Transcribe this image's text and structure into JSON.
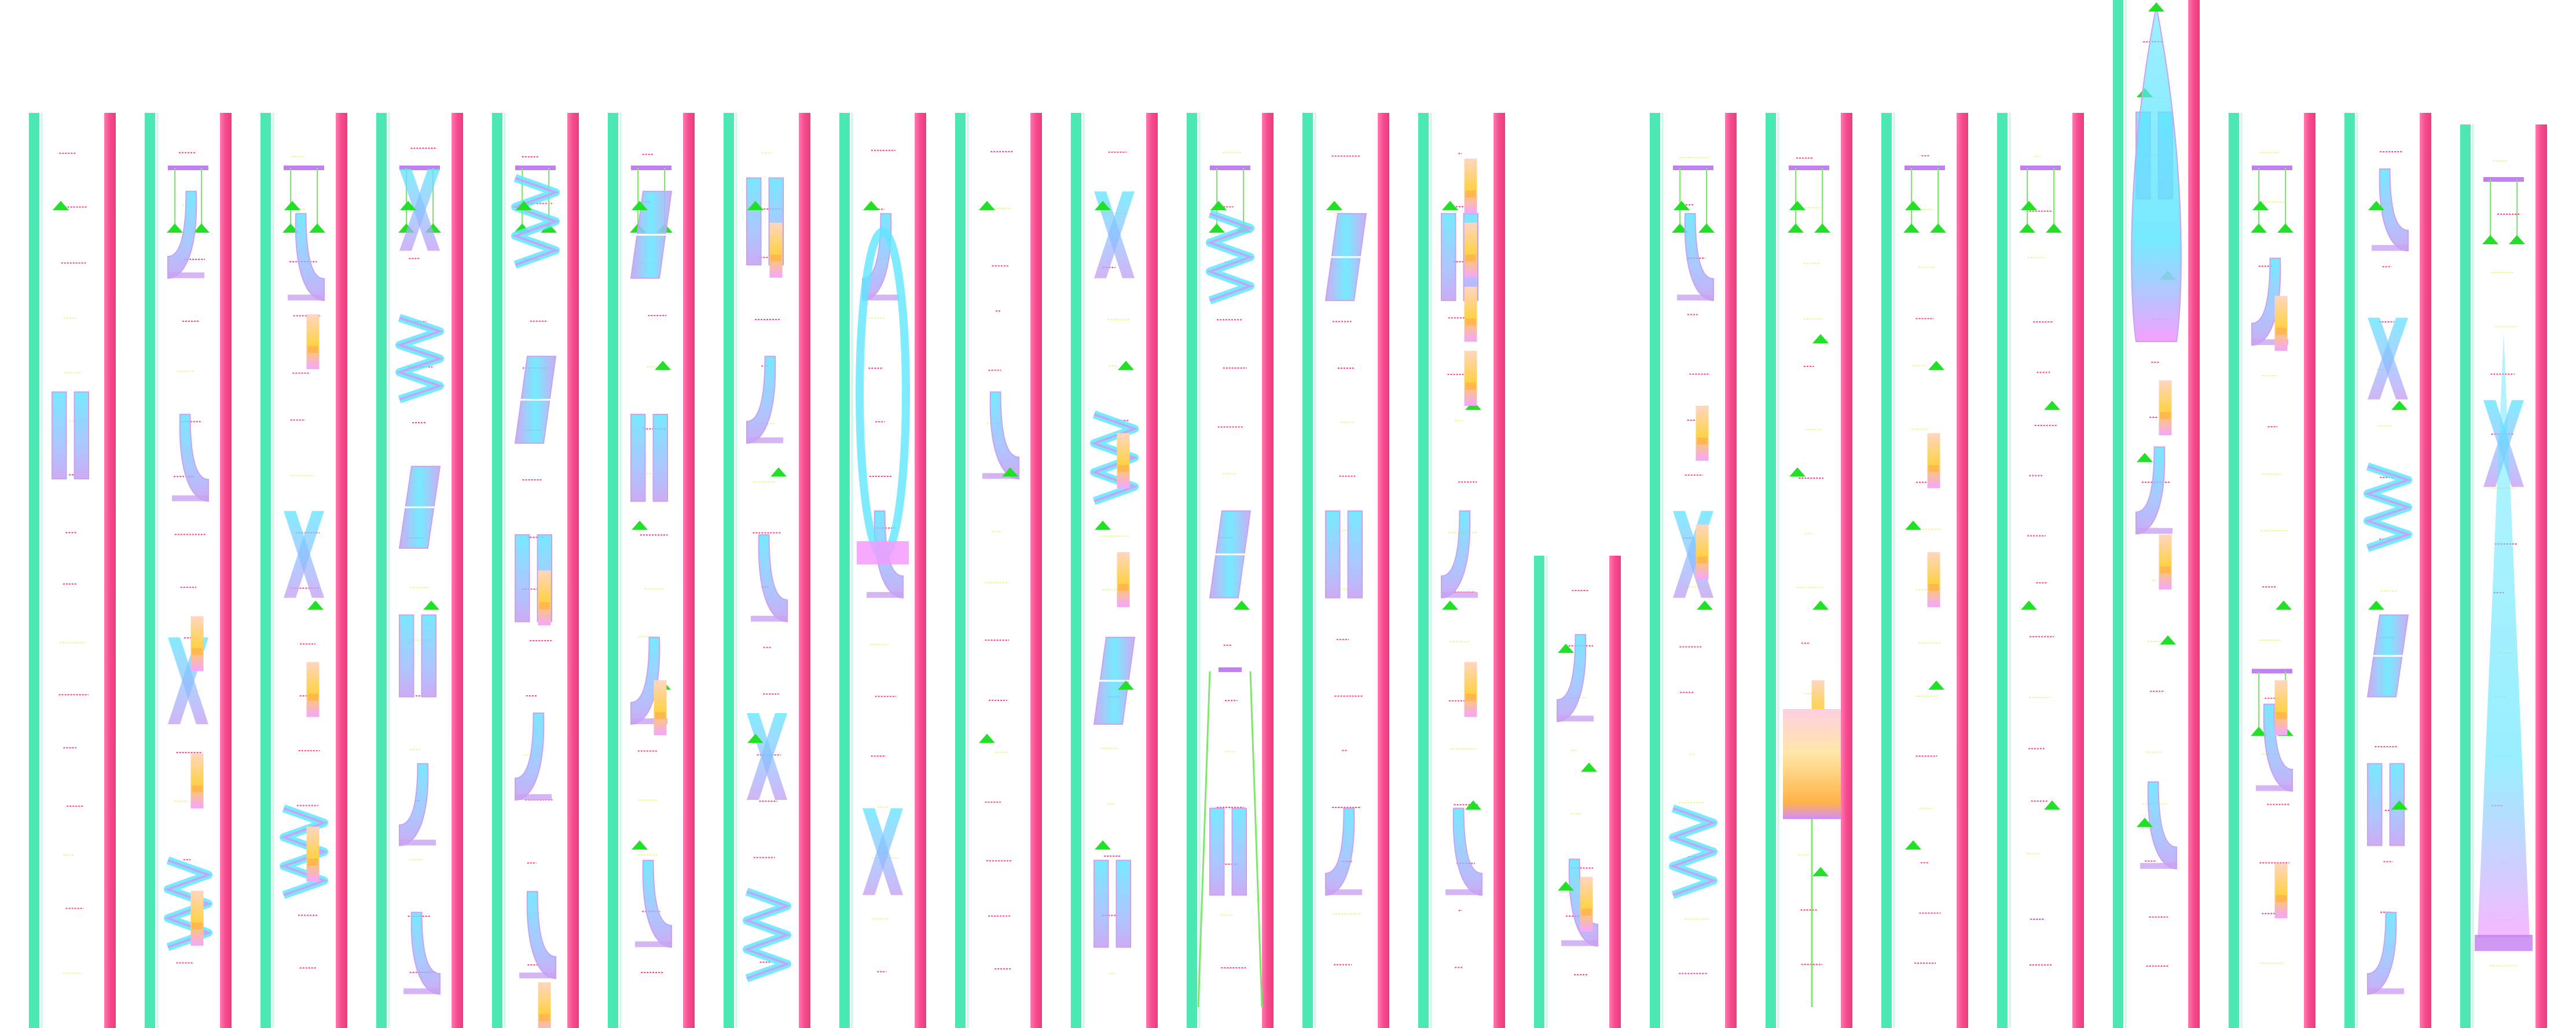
{
  "colors": {
    "background": "#ffffff",
    "left_rail": "#4ce8b4",
    "right_rail": "#f64a8e",
    "flow_cyan": "#5ee6ff",
    "flow_lavender": "#c9a2f2",
    "flow_blue": "#8fb6ff",
    "node_green": "#22e026",
    "bracket_violet": "#c27ff0",
    "block_yellow": "#ffd24a",
    "block_peach": "#ffcf9a",
    "block_orange": "#ffb347",
    "dash_red": "#ff3f7f",
    "dash_yellow": "#f3f28a",
    "wire_green": "#7de86a"
  },
  "lanes": [
    {
      "lane": 1,
      "blocks": [],
      "arrows": 1,
      "brackets": 0,
      "flows": 1
    },
    {
      "lane": 2,
      "blocks": [
        0.55,
        0.7,
        0.85
      ],
      "arrows": 0,
      "brackets": 1,
      "flows": 4
    },
    {
      "lane": 3,
      "blocks": [
        0.22,
        0.6,
        0.78
      ],
      "arrows": 2,
      "brackets": 1,
      "flows": 3
    },
    {
      "lane": 4,
      "blocks": [],
      "arrows": 2,
      "brackets": 1,
      "flows": 6
    },
    {
      "lane": 5,
      "blocks": [
        0.5,
        0.95
      ],
      "arrows": 1,
      "brackets": 1,
      "flows": 5
    },
    {
      "lane": 6,
      "blocks": [
        0.62
      ],
      "arrows": 5,
      "brackets": 1,
      "flows": 4
    },
    {
      "lane": 7,
      "blocks": [
        0.12
      ],
      "arrows": 3,
      "brackets": 0,
      "flows": 5
    },
    {
      "lane": 8,
      "blocks": [],
      "arrows": 1,
      "brackets": 0,
      "flows": 3
    },
    {
      "lane": 9,
      "blocks": [],
      "arrows": 3,
      "brackets": 0,
      "flows": 1
    },
    {
      "lane": 10,
      "blocks": [
        0.35,
        0.48
      ],
      "arrows": 5,
      "brackets": 0,
      "flows": 4
    },
    {
      "lane": 11,
      "blocks": [],
      "arrows": 2,
      "brackets": 1,
      "flows": 3
    },
    {
      "lane": 12,
      "blocks": [],
      "arrows": 1,
      "brackets": 0,
      "flows": 3
    },
    {
      "lane": 13,
      "blocks": [
        0.05,
        0.12,
        0.19,
        0.26,
        0.6
      ],
      "arrows": 4,
      "brackets": 0,
      "flows": 3
    },
    {
      "lane": 14,
      "blocks": [
        0.68
      ],
      "arrows": 3,
      "brackets": 0,
      "flows": 2
    },
    {
      "lane": 15,
      "blocks": [
        0.32,
        0.45
      ],
      "arrows": 2,
      "brackets": 1,
      "flows": 3
    },
    {
      "lane": 16,
      "blocks": [
        0.62
      ],
      "arrows": 6,
      "brackets": 1,
      "flows": 0
    },
    {
      "lane": 17,
      "blocks": [
        0.35,
        0.48
      ],
      "arrows": 5,
      "brackets": 1,
      "flows": 0
    },
    {
      "lane": 18,
      "blocks": [],
      "arrows": 4,
      "brackets": 1,
      "flows": 0
    },
    {
      "lane": 19,
      "blocks": [
        0.37,
        0.52
      ],
      "arrows": 5,
      "brackets": 0,
      "flows": 3
    },
    {
      "lane": 20,
      "blocks": [
        0.2,
        0.62,
        0.82
      ],
      "arrows": 2,
      "brackets": 2,
      "flows": 2
    },
    {
      "lane": 21,
      "blocks": [],
      "arrows": 4,
      "brackets": 0,
      "flows": 6
    },
    {
      "lane": 22,
      "blocks": [],
      "arrows": 0,
      "brackets": 1,
      "flows": 1
    }
  ]
}
